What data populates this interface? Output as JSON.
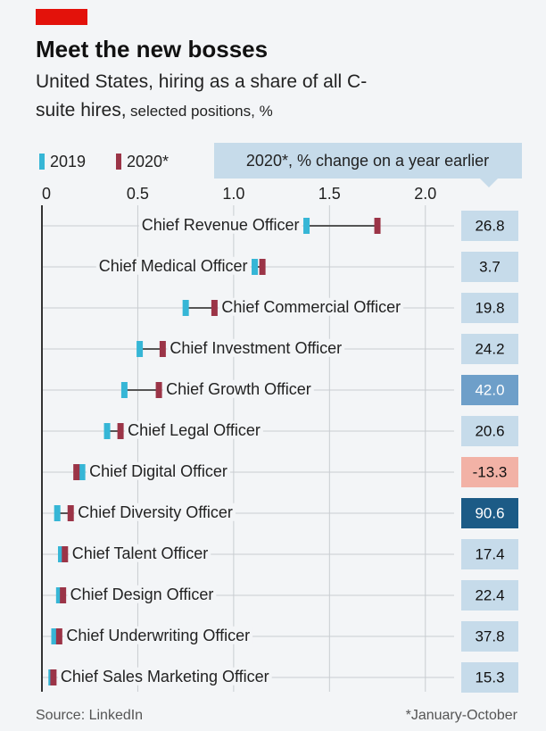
{
  "chart_data": {
    "type": "dumbbell",
    "title": "Meet the new bosses",
    "subtitle": "United States, hiring as a share of all C-suite hires,",
    "subtitle_note": "selected positions, %",
    "change_title": "2020*, % change on a year earlier",
    "source": "Source: LinkedIn",
    "footnote": "*January-October",
    "categories": [
      "Chief Revenue Officer",
      "Chief Medical Officer",
      "Chief Commercial Officer",
      "Chief Investment Officer",
      "Chief Growth Officer",
      "Chief Legal Officer",
      "Chief Digital Officer",
      "Chief Diversity Officer",
      "Chief Talent Officer",
      "Chief Design Officer",
      "Chief Underwriting Officer",
      "Chief Sales Marketing Officer"
    ],
    "series": [
      {
        "name": "2019",
        "color": "#36b6d6",
        "values": [
          1.38,
          1.11,
          0.75,
          0.51,
          0.43,
          0.34,
          0.21,
          0.08,
          0.1,
          0.09,
          0.065,
          0.05
        ]
      },
      {
        "name": "2020*",
        "color": "#9b3447",
        "values": [
          1.75,
          1.15,
          0.9,
          0.63,
          0.61,
          0.41,
          0.18,
          0.15,
          0.12,
          0.11,
          0.09,
          0.06
        ]
      }
    ],
    "change": [
      26.8,
      3.7,
      19.8,
      24.2,
      42.0,
      20.6,
      -13.3,
      90.6,
      17.4,
      22.4,
      37.8,
      15.3
    ],
    "change_labels": [
      "26.8",
      "3.7",
      "19.8",
      "24.2",
      "42.0",
      "20.6",
      "-13.3",
      "90.6",
      "17.4",
      "22.4",
      "37.8",
      "15.3"
    ],
    "change_colors": [
      "#c6dbea",
      "#c6dbea",
      "#c6dbea",
      "#c6dbea",
      "#6e9fc9",
      "#c6dbea",
      "#f2b2a6",
      "#1c5b86",
      "#c6dbea",
      "#c6dbea",
      "#c6dbea",
      "#c6dbea"
    ],
    "xlim": [
      0,
      2.15
    ],
    "xticks": [
      0,
      0.5,
      {
        "value": 1,
        "label": "1.0"
      },
      1.5,
      {
        "value": 2,
        "label": "2.0"
      }
    ],
    "grid": true
  }
}
